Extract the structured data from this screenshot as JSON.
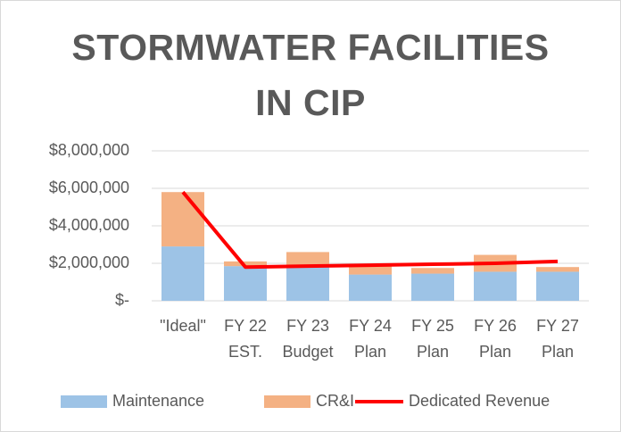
{
  "chart_data": {
    "type": "stacked_bar_line",
    "title": "STORMWATER FACILITIES IN CIP",
    "categories": [
      [
        "\"Ideal\""
      ],
      [
        "FY 22",
        "EST."
      ],
      [
        "FY 23",
        "Budget"
      ],
      [
        "FY 24",
        "Plan"
      ],
      [
        "FY 25",
        "Plan"
      ],
      [
        "FY 26",
        "Plan"
      ],
      [
        "FY 27",
        "Plan"
      ]
    ],
    "series": [
      {
        "name": "Maintenance",
        "color": "#9dc3e6",
        "kind": "bar",
        "values": [
          2900000,
          1850000,
          1850000,
          1400000,
          1450000,
          1550000,
          1550000
        ]
      },
      {
        "name": "CR&I",
        "color": "#f4b183",
        "kind": "bar",
        "values": [
          2900000,
          250000,
          750000,
          550000,
          300000,
          900000,
          250000
        ]
      },
      {
        "name": "Dedicated Revenue",
        "color": "#ff0000",
        "kind": "line",
        "values": [
          5800000,
          1800000,
          1850000,
          1900000,
          1950000,
          2000000,
          2100000
        ]
      }
    ],
    "ylim": [
      0,
      8000000
    ],
    "yticks": [
      {
        "value": 0,
        "label": "$-"
      },
      {
        "value": 2000000,
        "label": "$2,000,000"
      },
      {
        "value": 4000000,
        "label": "$4,000,000"
      },
      {
        "value": 6000000,
        "label": "$6,000,000"
      },
      {
        "value": 8000000,
        "label": "$8,000,000"
      }
    ],
    "grid": true,
    "legend": "bottom"
  }
}
